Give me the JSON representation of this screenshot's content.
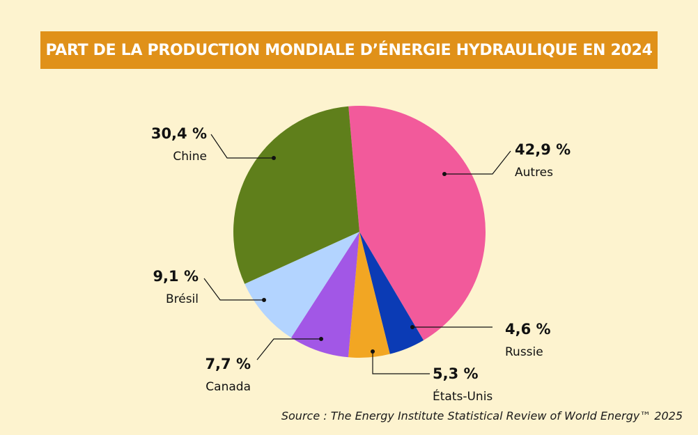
{
  "chart_data": {
    "type": "pie",
    "title": "PART DE LA PRODUCTION MONDIALE D’ÉNERGIE HYDRAULIQUE EN 2024",
    "source": "Source : The Energy Institute Statistical Review of World Energy™ 2025",
    "slices": [
      {
        "name": "Autres",
        "value": 42.9,
        "label": "42,9 %",
        "color": "#f25a9b"
      },
      {
        "name": "Russie",
        "value": 4.6,
        "label": "4,6 %",
        "color": "#0b3bb5"
      },
      {
        "name": "États-Unis",
        "value": 5.3,
        "label": "5,3 %",
        "color": "#f2a623"
      },
      {
        "name": "Canada",
        "value": 7.7,
        "label": "7,7 %",
        "color": "#a257e6"
      },
      {
        "name": "Brésil",
        "value": 9.1,
        "label": "9,1 %",
        "color": "#b3d4ff"
      },
      {
        "name": "Chine",
        "value": 30.4,
        "label": "30,4 %",
        "color": "#5f7f1b"
      }
    ]
  }
}
